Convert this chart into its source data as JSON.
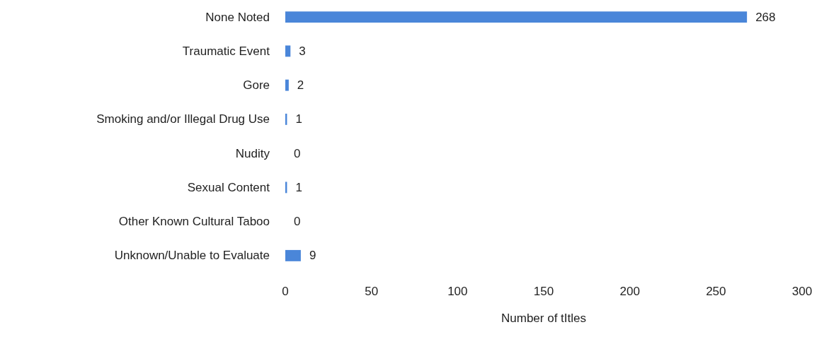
{
  "chart_data": {
    "type": "bar",
    "orientation": "horizontal",
    "categories": [
      "None Noted",
      "Traumatic Event",
      "Gore",
      "Smoking and/or Illegal Drug Use",
      "Nudity",
      "Sexual Content",
      "Other Known Cultural Taboo",
      "Unknown/Unable to Evaluate"
    ],
    "values": [
      268,
      3,
      2,
      1,
      0,
      1,
      0,
      9
    ],
    "color": "#4a86d9",
    "xlabel": "Number of tItles",
    "xlim": [
      0,
      300
    ],
    "xticks": [
      0,
      50,
      100,
      150,
      200,
      250,
      300
    ],
    "data_labels": true
  }
}
